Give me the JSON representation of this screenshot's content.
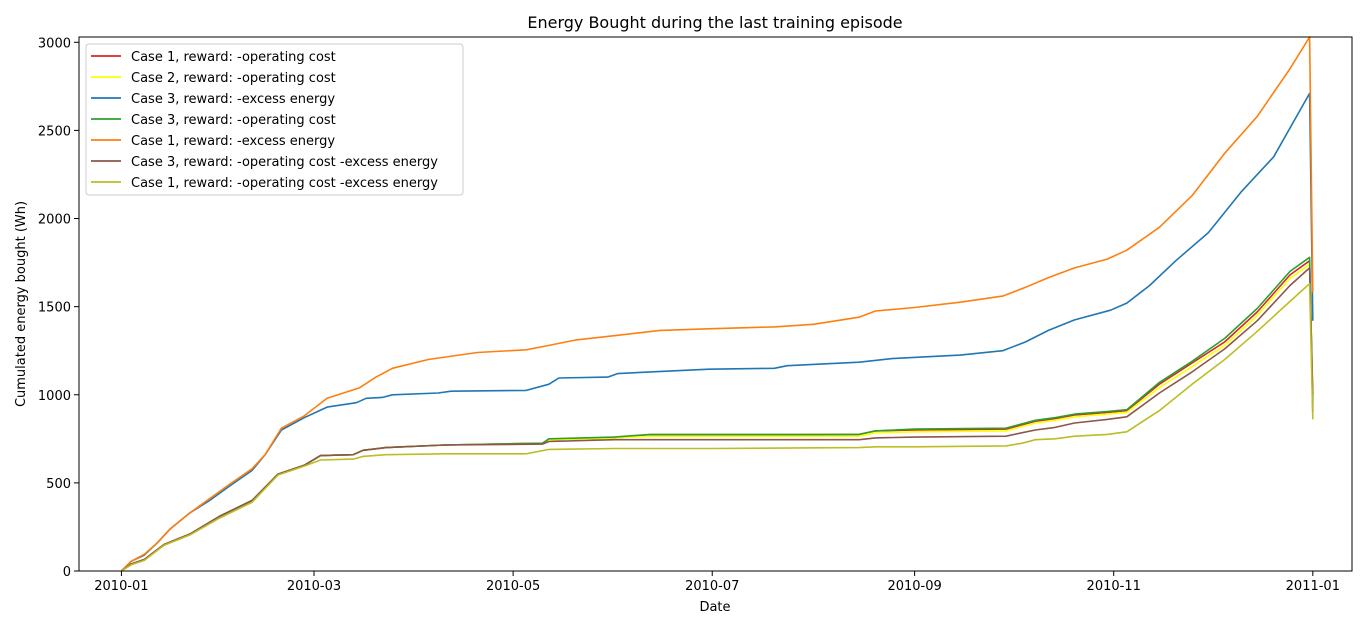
{
  "chart_data": {
    "type": "line",
    "title": "Energy Bought during the last training episode",
    "xlabel": "Date",
    "ylabel": "Cumulated energy bought (Wh)",
    "x_range": [
      "2009-12-19",
      "2011-01-13"
    ],
    "ylim": [
      0,
      3030
    ],
    "x_ticks": [
      "2010-01-01",
      "2010-03-01",
      "2010-05-01",
      "2010-07-01",
      "2010-09-01",
      "2010-11-01",
      "2011-01-01"
    ],
    "x_tick_labels": [
      "2010-01",
      "2010-03",
      "2010-05",
      "2010-07",
      "2010-09",
      "2010-11",
      "2011-01"
    ],
    "y_ticks": [
      0,
      500,
      1000,
      1500,
      2000,
      2500,
      3000
    ],
    "grid": false,
    "legend_position": "top-left",
    "series": [
      {
        "name": "Case 1, reward: -operating cost",
        "color": "#d62728",
        "points": [
          [
            "2010-01-01",
            0
          ],
          [
            "2010-01-04",
            40
          ],
          [
            "2010-01-08",
            65
          ],
          [
            "2010-01-14",
            150
          ],
          [
            "2010-01-22",
            210
          ],
          [
            "2010-01-31",
            310
          ],
          [
            "2010-02-10",
            400
          ],
          [
            "2010-02-18",
            550
          ],
          [
            "2010-02-26",
            600
          ],
          [
            "2010-03-03",
            655
          ],
          [
            "2010-03-13",
            660
          ],
          [
            "2010-03-16",
            685
          ],
          [
            "2010-03-23",
            700
          ],
          [
            "2010-04-10",
            715
          ],
          [
            "2010-05-10",
            725
          ],
          [
            "2010-05-12",
            745
          ],
          [
            "2010-06-01",
            755
          ],
          [
            "2010-06-12",
            770
          ],
          [
            "2010-07-01",
            770
          ],
          [
            "2010-08-15",
            775
          ],
          [
            "2010-08-20",
            795
          ],
          [
            "2010-09-01",
            800
          ],
          [
            "2010-09-29",
            805
          ],
          [
            "2010-10-04",
            830
          ],
          [
            "2010-10-08",
            850
          ],
          [
            "2010-10-14",
            865
          ],
          [
            "2010-10-20",
            885
          ],
          [
            "2010-10-30",
            900
          ],
          [
            "2010-11-05",
            910
          ],
          [
            "2010-11-15",
            1060
          ],
          [
            "2010-11-25",
            1180
          ],
          [
            "2010-12-05",
            1300
          ],
          [
            "2010-12-15",
            1470
          ],
          [
            "2010-12-25",
            1680
          ],
          [
            "2010-12-31",
            1760
          ],
          [
            "2011-01-01",
            900
          ]
        ]
      },
      {
        "name": "Case 2, reward: -operating cost",
        "color": "#ffff00",
        "points": [
          [
            "2010-01-01",
            0
          ],
          [
            "2010-01-04",
            40
          ],
          [
            "2010-01-08",
            65
          ],
          [
            "2010-01-14",
            150
          ],
          [
            "2010-01-22",
            210
          ],
          [
            "2010-01-31",
            310
          ],
          [
            "2010-02-10",
            400
          ],
          [
            "2010-02-18",
            550
          ],
          [
            "2010-02-26",
            600
          ],
          [
            "2010-03-03",
            655
          ],
          [
            "2010-03-13",
            660
          ],
          [
            "2010-03-16",
            685
          ],
          [
            "2010-03-23",
            700
          ],
          [
            "2010-04-10",
            715
          ],
          [
            "2010-05-10",
            725
          ],
          [
            "2010-05-12",
            745
          ],
          [
            "2010-06-01",
            755
          ],
          [
            "2010-06-12",
            765
          ],
          [
            "2010-07-01",
            765
          ],
          [
            "2010-08-15",
            765
          ],
          [
            "2010-08-20",
            785
          ],
          [
            "2010-09-01",
            790
          ],
          [
            "2010-09-29",
            795
          ],
          [
            "2010-10-04",
            820
          ],
          [
            "2010-10-08",
            840
          ],
          [
            "2010-10-14",
            855
          ],
          [
            "2010-10-20",
            875
          ],
          [
            "2010-10-30",
            890
          ],
          [
            "2010-11-05",
            900
          ],
          [
            "2010-11-15",
            1040
          ],
          [
            "2010-11-25",
            1160
          ],
          [
            "2010-12-05",
            1280
          ],
          [
            "2010-12-15",
            1450
          ],
          [
            "2010-12-25",
            1660
          ],
          [
            "2010-12-31",
            1740
          ],
          [
            "2011-01-01",
            1000
          ]
        ]
      },
      {
        "name": "Case 3, reward: -excess energy",
        "color": "#1f77b4",
        "points": [
          [
            "2010-01-01",
            0
          ],
          [
            "2010-01-04",
            55
          ],
          [
            "2010-01-08",
            90
          ],
          [
            "2010-01-12",
            160
          ],
          [
            "2010-01-16",
            240
          ],
          [
            "2010-01-22",
            330
          ],
          [
            "2010-01-28",
            400
          ],
          [
            "2010-02-03",
            480
          ],
          [
            "2010-02-10",
            570
          ],
          [
            "2010-02-14",
            660
          ],
          [
            "2010-02-19",
            800
          ],
          [
            "2010-02-26",
            870
          ],
          [
            "2010-03-05",
            930
          ],
          [
            "2010-03-14",
            955
          ],
          [
            "2010-03-17",
            980
          ],
          [
            "2010-03-22",
            985
          ],
          [
            "2010-03-25",
            1000
          ],
          [
            "2010-04-08",
            1010
          ],
          [
            "2010-04-12",
            1020
          ],
          [
            "2010-05-05",
            1025
          ],
          [
            "2010-05-12",
            1060
          ],
          [
            "2010-05-15",
            1095
          ],
          [
            "2010-05-30",
            1100
          ],
          [
            "2010-06-02",
            1120
          ],
          [
            "2010-06-12",
            1130
          ],
          [
            "2010-06-30",
            1145
          ],
          [
            "2010-07-20",
            1150
          ],
          [
            "2010-07-24",
            1165
          ],
          [
            "2010-08-15",
            1185
          ],
          [
            "2010-08-25",
            1205
          ],
          [
            "2010-09-15",
            1225
          ],
          [
            "2010-09-28",
            1250
          ],
          [
            "2010-10-05",
            1300
          ],
          [
            "2010-10-12",
            1365
          ],
          [
            "2010-10-20",
            1425
          ],
          [
            "2010-10-31",
            1480
          ],
          [
            "2010-11-05",
            1520
          ],
          [
            "2010-11-12",
            1620
          ],
          [
            "2010-11-20",
            1760
          ],
          [
            "2010-11-30",
            1920
          ],
          [
            "2010-12-10",
            2150
          ],
          [
            "2010-12-20",
            2350
          ],
          [
            "2010-12-31",
            2710
          ],
          [
            "2011-01-01",
            1420
          ]
        ]
      },
      {
        "name": "Case 3, reward: -operating cost",
        "color": "#2ca02c",
        "points": [
          [
            "2010-01-01",
            0
          ],
          [
            "2010-01-04",
            40
          ],
          [
            "2010-01-08",
            65
          ],
          [
            "2010-01-14",
            150
          ],
          [
            "2010-01-22",
            210
          ],
          [
            "2010-01-31",
            310
          ],
          [
            "2010-02-10",
            400
          ],
          [
            "2010-02-18",
            550
          ],
          [
            "2010-02-26",
            600
          ],
          [
            "2010-03-03",
            655
          ],
          [
            "2010-03-13",
            660
          ],
          [
            "2010-03-16",
            685
          ],
          [
            "2010-03-23",
            700
          ],
          [
            "2010-04-10",
            715
          ],
          [
            "2010-05-10",
            725
          ],
          [
            "2010-05-12",
            750
          ],
          [
            "2010-06-01",
            760
          ],
          [
            "2010-06-12",
            775
          ],
          [
            "2010-07-01",
            775
          ],
          [
            "2010-08-15",
            775
          ],
          [
            "2010-08-20",
            795
          ],
          [
            "2010-09-01",
            805
          ],
          [
            "2010-09-29",
            810
          ],
          [
            "2010-10-04",
            835
          ],
          [
            "2010-10-08",
            855
          ],
          [
            "2010-10-14",
            870
          ],
          [
            "2010-10-20",
            890
          ],
          [
            "2010-10-30",
            905
          ],
          [
            "2010-11-05",
            915
          ],
          [
            "2010-11-15",
            1070
          ],
          [
            "2010-11-25",
            1190
          ],
          [
            "2010-12-05",
            1320
          ],
          [
            "2010-12-15",
            1490
          ],
          [
            "2010-12-25",
            1700
          ],
          [
            "2010-12-31",
            1780
          ],
          [
            "2011-01-01",
            950
          ]
        ]
      },
      {
        "name": "Case 1, reward: -excess energy",
        "color": "#ff7f0e",
        "points": [
          [
            "2010-01-01",
            0
          ],
          [
            "2010-01-04",
            55
          ],
          [
            "2010-01-08",
            95
          ],
          [
            "2010-01-12",
            160
          ],
          [
            "2010-01-16",
            240
          ],
          [
            "2010-01-22",
            330
          ],
          [
            "2010-01-28",
            410
          ],
          [
            "2010-02-03",
            490
          ],
          [
            "2010-02-10",
            580
          ],
          [
            "2010-02-14",
            660
          ],
          [
            "2010-02-19",
            810
          ],
          [
            "2010-02-26",
            880
          ],
          [
            "2010-03-05",
            980
          ],
          [
            "2010-03-15",
            1040
          ],
          [
            "2010-03-20",
            1100
          ],
          [
            "2010-03-25",
            1150
          ],
          [
            "2010-04-05",
            1200
          ],
          [
            "2010-04-20",
            1240
          ],
          [
            "2010-05-05",
            1255
          ],
          [
            "2010-05-12",
            1280
          ],
          [
            "2010-05-20",
            1310
          ],
          [
            "2010-06-01",
            1335
          ],
          [
            "2010-06-15",
            1365
          ],
          [
            "2010-07-01",
            1375
          ],
          [
            "2010-07-20",
            1385
          ],
          [
            "2010-08-01",
            1400
          ],
          [
            "2010-08-15",
            1440
          ],
          [
            "2010-08-20",
            1475
          ],
          [
            "2010-09-01",
            1495
          ],
          [
            "2010-09-15",
            1525
          ],
          [
            "2010-09-28",
            1560
          ],
          [
            "2010-10-05",
            1610
          ],
          [
            "2010-10-12",
            1665
          ],
          [
            "2010-10-20",
            1720
          ],
          [
            "2010-10-30",
            1770
          ],
          [
            "2010-11-05",
            1820
          ],
          [
            "2010-11-15",
            1950
          ],
          [
            "2010-11-25",
            2130
          ],
          [
            "2010-12-05",
            2370
          ],
          [
            "2010-12-15",
            2580
          ],
          [
            "2010-12-25",
            2850
          ],
          [
            "2010-12-31",
            3030
          ],
          [
            "2011-01-01",
            1580
          ]
        ]
      },
      {
        "name": "Case 3, reward: -operating cost -excess energy",
        "color": "#8c564b",
        "points": [
          [
            "2010-01-01",
            0
          ],
          [
            "2010-01-04",
            40
          ],
          [
            "2010-01-08",
            65
          ],
          [
            "2010-01-14",
            150
          ],
          [
            "2010-01-22",
            210
          ],
          [
            "2010-01-31",
            310
          ],
          [
            "2010-02-10",
            400
          ],
          [
            "2010-02-18",
            550
          ],
          [
            "2010-02-26",
            600
          ],
          [
            "2010-03-03",
            655
          ],
          [
            "2010-03-13",
            660
          ],
          [
            "2010-03-16",
            685
          ],
          [
            "2010-03-23",
            700
          ],
          [
            "2010-04-10",
            715
          ],
          [
            "2010-05-10",
            720
          ],
          [
            "2010-05-12",
            735
          ],
          [
            "2010-06-01",
            745
          ],
          [
            "2010-06-12",
            745
          ],
          [
            "2010-07-01",
            745
          ],
          [
            "2010-08-15",
            745
          ],
          [
            "2010-08-20",
            755
          ],
          [
            "2010-09-01",
            760
          ],
          [
            "2010-09-29",
            765
          ],
          [
            "2010-10-04",
            785
          ],
          [
            "2010-10-08",
            800
          ],
          [
            "2010-10-14",
            815
          ],
          [
            "2010-10-20",
            840
          ],
          [
            "2010-10-30",
            860
          ],
          [
            "2010-11-05",
            875
          ],
          [
            "2010-11-15",
            1010
          ],
          [
            "2010-11-25",
            1130
          ],
          [
            "2010-12-05",
            1260
          ],
          [
            "2010-12-15",
            1420
          ],
          [
            "2010-12-25",
            1620
          ],
          [
            "2010-12-31",
            1720
          ],
          [
            "2011-01-01",
            1000
          ]
        ]
      },
      {
        "name": "Case 1, reward: -operating cost -excess energy",
        "color": "#bcbd22",
        "points": [
          [
            "2010-01-01",
            0
          ],
          [
            "2010-01-04",
            35
          ],
          [
            "2010-01-08",
            60
          ],
          [
            "2010-01-14",
            145
          ],
          [
            "2010-01-22",
            205
          ],
          [
            "2010-01-31",
            300
          ],
          [
            "2010-02-10",
            390
          ],
          [
            "2010-02-18",
            545
          ],
          [
            "2010-02-26",
            595
          ],
          [
            "2010-03-03",
            630
          ],
          [
            "2010-03-13",
            635
          ],
          [
            "2010-03-16",
            650
          ],
          [
            "2010-03-23",
            660
          ],
          [
            "2010-04-10",
            665
          ],
          [
            "2010-05-05",
            665
          ],
          [
            "2010-05-12",
            690
          ],
          [
            "2010-06-01",
            695
          ],
          [
            "2010-07-01",
            695
          ],
          [
            "2010-08-15",
            700
          ],
          [
            "2010-08-20",
            705
          ],
          [
            "2010-09-01",
            705
          ],
          [
            "2010-09-29",
            710
          ],
          [
            "2010-10-04",
            725
          ],
          [
            "2010-10-08",
            745
          ],
          [
            "2010-10-14",
            750
          ],
          [
            "2010-10-20",
            765
          ],
          [
            "2010-10-30",
            775
          ],
          [
            "2010-11-05",
            790
          ],
          [
            "2010-11-15",
            910
          ],
          [
            "2010-11-25",
            1060
          ],
          [
            "2010-12-05",
            1200
          ],
          [
            "2010-12-15",
            1360
          ],
          [
            "2010-12-25",
            1530
          ],
          [
            "2010-12-31",
            1630
          ],
          [
            "2011-01-01",
            860
          ]
        ]
      }
    ]
  }
}
